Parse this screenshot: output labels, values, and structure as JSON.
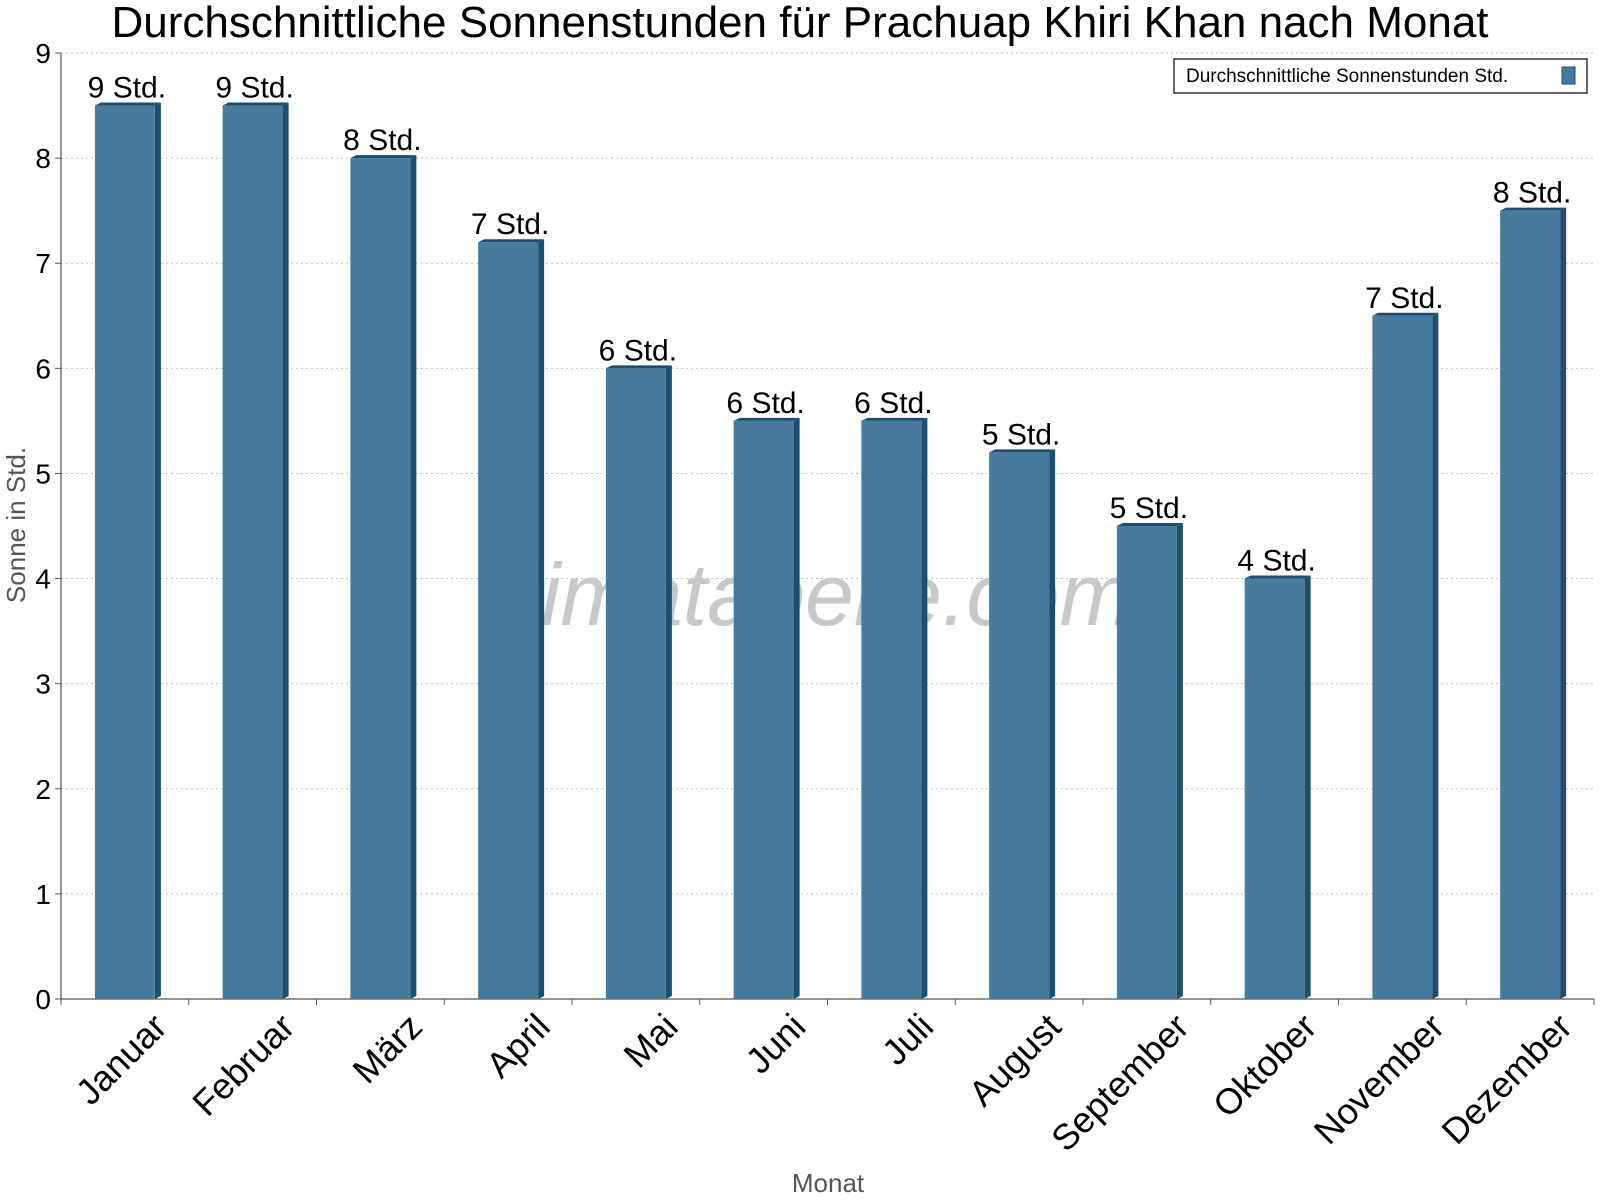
{
  "chart_data": {
    "type": "bar",
    "title": "Durchschnittliche Sonnenstunden für Prachuap Khiri Khan nach Monat",
    "xlabel": "Monat",
    "ylabel": "Sonne in Std.",
    "ylim": [
      0,
      9
    ],
    "yticks": [
      0,
      1,
      2,
      3,
      4,
      5,
      6,
      7,
      8,
      9
    ],
    "grid": true,
    "legend_position": "top-right",
    "categories": [
      "Januar",
      "Februar",
      "März",
      "April",
      "Mai",
      "Juni",
      "Juli",
      "August",
      "September",
      "Oktober",
      "November",
      "Dezember"
    ],
    "series": [
      {
        "name": "Durchschnittliche Sonnenstunden Std.",
        "values": [
          8.5,
          8.5,
          8.0,
          7.2,
          6.0,
          5.5,
          5.5,
          5.2,
          4.5,
          4.0,
          6.5,
          7.5
        ],
        "data_labels": [
          "9 Std.",
          "9 Std.",
          "8 Std.",
          "7 Std.",
          "6 Std.",
          "6 Std.",
          "6 Std.",
          "5 Std.",
          "5 Std.",
          "4 Std.",
          "7 Std.",
          "8 Std."
        ],
        "color": "#467b9d",
        "side_color": "#1d4e6f"
      }
    ],
    "watermark": "klimatabelle.com"
  }
}
